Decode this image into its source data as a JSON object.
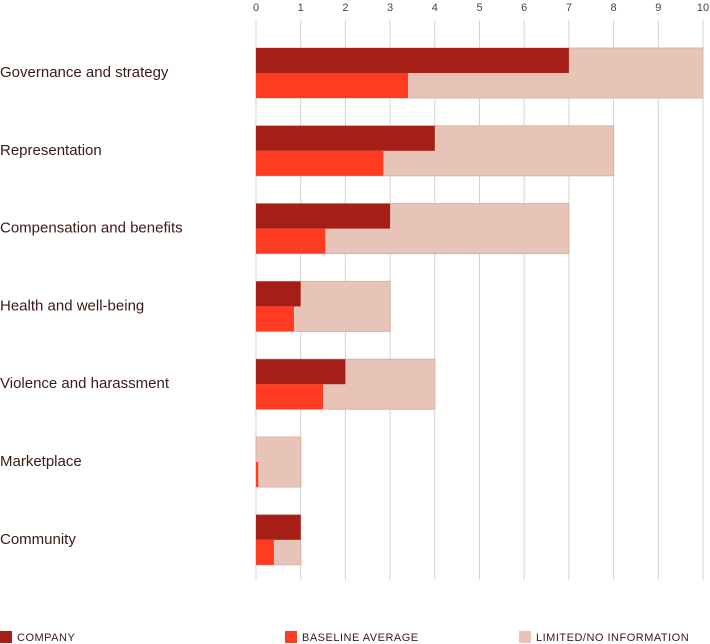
{
  "chart_data": {
    "type": "bar",
    "orientation": "horizontal",
    "categories": [
      "Governance and strategy",
      "Representation",
      "Compensation and benefits",
      "Health and well-being",
      "Violence and harassment",
      "Marketplace",
      "Community"
    ],
    "series": [
      {
        "name": "LIMITED/NO INFORMATION",
        "color": "#e8c3b8",
        "values": [
          10,
          8,
          7,
          3,
          4,
          1,
          1
        ]
      },
      {
        "name": "COMPANY",
        "color": "#a51f17",
        "values": [
          7,
          4,
          3,
          1,
          2,
          0,
          1
        ]
      },
      {
        "name": "BASELINE AVERAGE",
        "color": "#ff3b22",
        "values": [
          3.4,
          2.85,
          1.55,
          0.85,
          1.5,
          0.05,
          0.4
        ]
      }
    ],
    "xlim": [
      0,
      10
    ],
    "xticks": [
      0,
      1,
      2,
      3,
      4,
      5,
      6,
      7,
      8,
      9,
      10
    ],
    "grid": true,
    "legend": "bottom"
  }
}
